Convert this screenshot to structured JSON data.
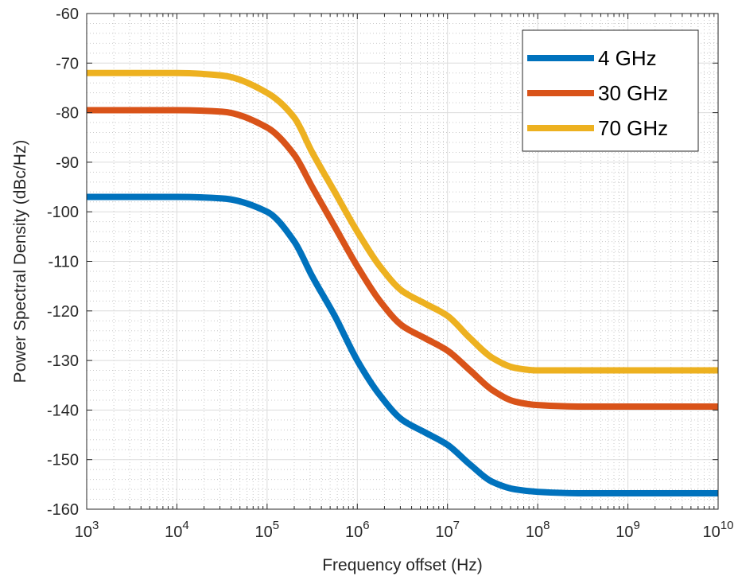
{
  "chart_data": {
    "type": "line",
    "title": "",
    "xlabel": "Frequency offset (Hz)",
    "ylabel": "Power Spectral Density (dBc/Hz)",
    "xscale": "log",
    "xlim": [
      1000,
      10000000000
    ],
    "ylim": [
      -160,
      -60
    ],
    "x_ticks": [
      {
        "base": "10",
        "exp": "3",
        "value": 1000
      },
      {
        "base": "10",
        "exp": "4",
        "value": 10000
      },
      {
        "base": "10",
        "exp": "5",
        "value": 100000
      },
      {
        "base": "10",
        "exp": "6",
        "value": 1000000
      },
      {
        "base": "10",
        "exp": "7",
        "value": 10000000
      },
      {
        "base": "10",
        "exp": "8",
        "value": 100000000
      },
      {
        "base": "10",
        "exp": "9",
        "value": 1000000000
      },
      {
        "base": "10",
        "exp": "10",
        "value": 10000000000
      }
    ],
    "y_ticks": [
      -60,
      -70,
      -80,
      -90,
      -100,
      -110,
      -120,
      -130,
      -140,
      -150,
      -160
    ],
    "y_tick_labels": [
      "-60",
      "-70",
      "-80",
      "-90",
      "-100",
      "-110",
      "-120",
      "-130",
      "-140",
      "-150",
      "-160"
    ],
    "grid": true,
    "minor_grid": true,
    "legend_position": "top-right",
    "x": [
      1000,
      10000,
      31600,
      100000,
      200000,
      316000,
      562000,
      1000000,
      1780000,
      3160000,
      5620000,
      10000000,
      17800000,
      31600000,
      56200000,
      100000000,
      316000000,
      1000000000,
      10000000000
    ],
    "series": [
      {
        "name": "4 GHz",
        "color": "#0072BD",
        "values": [
          -97,
          -97,
          -97.3,
          -100,
          -106,
          -113,
          -121,
          -130,
          -137,
          -142,
          -144.5,
          -147,
          -151,
          -154.5,
          -156,
          -156.5,
          -156.8,
          -156.8,
          -156.8
        ]
      },
      {
        "name": "30 GHz",
        "color": "#D95319",
        "values": [
          -79.5,
          -79.5,
          -79.8,
          -83,
          -88.5,
          -95,
          -103,
          -111,
          -118,
          -123,
          -125.5,
          -128,
          -132,
          -136,
          -138.3,
          -139,
          -139.3,
          -139.3,
          -139.3
        ]
      },
      {
        "name": "70 GHz",
        "color": "#EDB120",
        "values": [
          -72,
          -72,
          -72.5,
          -76,
          -81,
          -88,
          -96,
          -104,
          -111,
          -116,
          -118.5,
          -121,
          -125.5,
          -129.5,
          -131.5,
          -132,
          -132,
          -132,
          -132
        ]
      }
    ]
  }
}
